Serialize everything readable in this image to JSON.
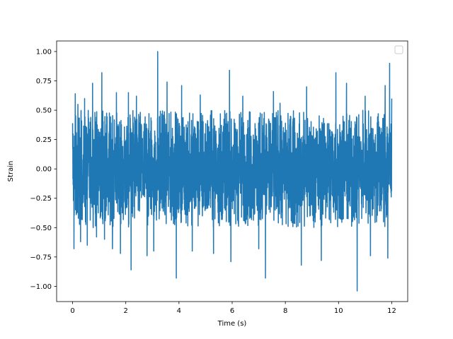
{
  "chart_data": {
    "type": "line",
    "title": "",
    "xlabel": "Time (s)",
    "ylabel": "Strain",
    "xlim": [
      -0.6,
      12.6
    ],
    "ylim": [
      -1.13,
      1.09
    ],
    "xticks": [
      0,
      2,
      4,
      6,
      8,
      10,
      12
    ],
    "xtick_labels": [
      "0",
      "2",
      "4",
      "6",
      "8",
      "10",
      "12"
    ],
    "yticks": [
      -1.0,
      -0.75,
      -0.5,
      -0.25,
      0.0,
      0.25,
      0.5,
      0.75,
      1.0
    ],
    "ytick_labels": [
      "−1.00",
      "−0.75",
      "−0.50",
      "−0.25",
      "0.00",
      "0.25",
      "0.50",
      "0.75",
      "1.00"
    ],
    "grid": false,
    "legend": "upper-right, empty",
    "series": [
      {
        "color": "#1f77b4",
        "x_start": 0,
        "x_end": 12,
        "band_high": 0.5,
        "band_low": -0.5,
        "peaks": [
          {
            "x": 0.0,
            "y": 0.39
          },
          {
            "x": 0.05,
            "y": -0.68
          },
          {
            "x": 0.1,
            "y": 0.64
          },
          {
            "x": 0.2,
            "y": 0.55
          },
          {
            "x": 0.3,
            "y": -0.62
          },
          {
            "x": 0.45,
            "y": 0.6
          },
          {
            "x": 0.55,
            "y": -0.65
          },
          {
            "x": 0.75,
            "y": 0.73
          },
          {
            "x": 0.9,
            "y": -0.58
          },
          {
            "x": 1.1,
            "y": 0.82
          },
          {
            "x": 1.2,
            "y": -0.6
          },
          {
            "x": 1.5,
            "y": -0.68
          },
          {
            "x": 1.65,
            "y": 0.65
          },
          {
            "x": 1.8,
            "y": -0.72
          },
          {
            "x": 2.1,
            "y": 0.65
          },
          {
            "x": 2.2,
            "y": -0.86
          },
          {
            "x": 2.4,
            "y": 0.62
          },
          {
            "x": 2.8,
            "y": -0.74
          },
          {
            "x": 3.05,
            "y": -0.7
          },
          {
            "x": 3.2,
            "y": 1.0
          },
          {
            "x": 3.55,
            "y": 0.74
          },
          {
            "x": 3.9,
            "y": -0.93
          },
          {
            "x": 4.1,
            "y": 0.71
          },
          {
            "x": 4.5,
            "y": -0.7
          },
          {
            "x": 4.8,
            "y": 0.63
          },
          {
            "x": 5.3,
            "y": -0.72
          },
          {
            "x": 5.9,
            "y": 0.84
          },
          {
            "x": 5.95,
            "y": -0.79
          },
          {
            "x": 6.4,
            "y": 0.62
          },
          {
            "x": 7.0,
            "y": -0.68
          },
          {
            "x": 7.25,
            "y": -0.93
          },
          {
            "x": 7.55,
            "y": 0.66
          },
          {
            "x": 7.8,
            "y": 0.56
          },
          {
            "x": 8.6,
            "y": -0.82
          },
          {
            "x": 8.8,
            "y": 0.7
          },
          {
            "x": 9.35,
            "y": -0.78
          },
          {
            "x": 9.9,
            "y": 0.82
          },
          {
            "x": 10.3,
            "y": 0.73
          },
          {
            "x": 10.7,
            "y": -1.04
          },
          {
            "x": 11.0,
            "y": 0.62
          },
          {
            "x": 11.2,
            "y": -0.74
          },
          {
            "x": 11.75,
            "y": 0.71
          },
          {
            "x": 11.85,
            "y": -0.76
          },
          {
            "x": 11.92,
            "y": 0.9
          },
          {
            "x": 12.0,
            "y": 0.6
          }
        ]
      }
    ]
  }
}
